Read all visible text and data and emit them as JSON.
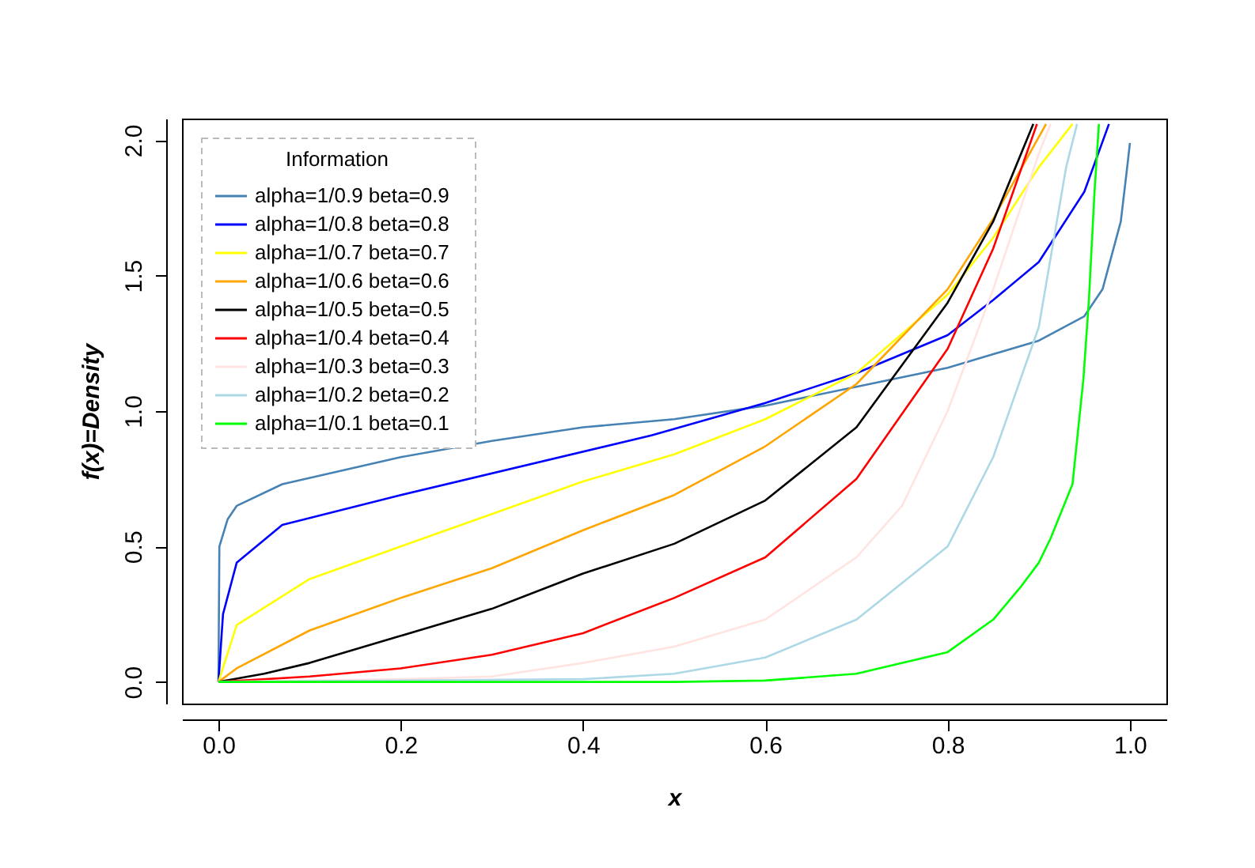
{
  "chart_data": {
    "type": "line",
    "xlabel": "x",
    "ylabel": "f(x)=Density",
    "legend_title": "Information",
    "legend": "top left",
    "grid": false,
    "xlim": [
      -0.04,
      1.04
    ],
    "ylim": [
      -0.08,
      2.08
    ],
    "xticks": [
      {
        "value": 0,
        "label": "0.0"
      },
      {
        "value": 0.2,
        "label": "0.2"
      },
      {
        "value": 0.4,
        "label": "0.4"
      },
      {
        "value": 0.6,
        "label": "0.6"
      },
      {
        "value": 0.8,
        "label": "0.8"
      },
      {
        "value": 1,
        "label": "1.0"
      }
    ],
    "yticks": [
      {
        "value": 0,
        "label": "0.0"
      },
      {
        "value": 0.5,
        "label": "0.5"
      },
      {
        "value": 1,
        "label": "1.0"
      },
      {
        "value": 1.5,
        "label": "1.5"
      },
      {
        "value": 2,
        "label": "2.0"
      }
    ],
    "series": [
      {
        "name": "alpha=1/0.9   beta=0.9",
        "color": "#4682b4",
        "x": [
          0,
          0.001,
          0.01,
          0.02,
          0.07,
          0.2,
          0.3,
          0.4,
          0.5,
          0.6,
          0.7,
          0.8,
          0.85,
          0.9,
          0.95,
          0.97,
          0.99,
          0.997,
          1
        ],
        "values": [
          0,
          0.5,
          0.6,
          0.65,
          0.73,
          0.83,
          0.89,
          0.94,
          0.97,
          1.02,
          1.09,
          1.16,
          1.21,
          1.26,
          1.35,
          1.45,
          1.7,
          1.9,
          1.99
        ]
      },
      {
        "name": "alpha=1/0.8   beta=0.8",
        "color": "#0000ff",
        "x": [
          0,
          0.005,
          0.02,
          0.07,
          0.2,
          0.475,
          0.6,
          0.7,
          0.8,
          0.85,
          0.9,
          0.95,
          0.977
        ],
        "values": [
          0,
          0.25,
          0.44,
          0.58,
          0.69,
          0.91,
          1.03,
          1.14,
          1.28,
          1.41,
          1.55,
          1.81,
          2.06
        ]
      },
      {
        "name": "alpha=1/0.7   beta=0.7",
        "color": "#ffff00",
        "x": [
          0,
          0.02,
          0.1,
          0.2,
          0.3,
          0.4,
          0.5,
          0.6,
          0.7,
          0.8,
          0.85,
          0.9,
          0.937
        ],
        "values": [
          0,
          0.21,
          0.38,
          0.5,
          0.62,
          0.74,
          0.84,
          0.97,
          1.14,
          1.43,
          1.64,
          1.9,
          2.06
        ]
      },
      {
        "name": "alpha=1/0.6   beta=0.6",
        "color": "#ffa500",
        "x": [
          0,
          0.02,
          0.1,
          0.2,
          0.3,
          0.4,
          0.5,
          0.6,
          0.7,
          0.8,
          0.85,
          0.908
        ],
        "values": [
          0,
          0.05,
          0.19,
          0.31,
          0.42,
          0.56,
          0.69,
          0.87,
          1.1,
          1.45,
          1.71,
          2.06
        ]
      },
      {
        "name": "alpha=1/0.5   beta=0.5",
        "color": "#000000",
        "x": [
          0,
          0.05,
          0.1,
          0.2,
          0.3,
          0.4,
          0.5,
          0.6,
          0.7,
          0.8,
          0.85,
          0.894
        ],
        "values": [
          0,
          0.03,
          0.07,
          0.17,
          0.27,
          0.4,
          0.51,
          0.67,
          0.94,
          1.4,
          1.7,
          2.06
        ]
      },
      {
        "name": "alpha=1/0.4   beta=0.4",
        "color": "#ff0000",
        "x": [
          0,
          0.1,
          0.2,
          0.3,
          0.4,
          0.5,
          0.6,
          0.7,
          0.8,
          0.85,
          0.898
        ],
        "values": [
          0,
          0.02,
          0.05,
          0.1,
          0.18,
          0.31,
          0.46,
          0.75,
          1.23,
          1.6,
          2.06
        ]
      },
      {
        "name": "alpha=1/0.3   beta=0.3",
        "color": "#ffe4e1",
        "x": [
          0,
          0.2,
          0.3,
          0.4,
          0.5,
          0.6,
          0.7,
          0.75,
          0.8,
          0.85,
          0.9,
          0.913
        ],
        "values": [
          0,
          0.01,
          0.02,
          0.07,
          0.13,
          0.23,
          0.46,
          0.65,
          1,
          1.45,
          1.95,
          2.06
        ]
      },
      {
        "name": "alpha=1/0.2   beta=0.2",
        "color": "#add8e6",
        "x": [
          0,
          0.4,
          0.5,
          0.6,
          0.7,
          0.8,
          0.85,
          0.9,
          0.93,
          0.942
        ],
        "values": [
          0,
          0.01,
          0.03,
          0.09,
          0.23,
          0.5,
          0.83,
          1.31,
          1.9,
          2.06
        ]
      },
      {
        "name": "alpha=1/0.1   beta=0.1",
        "color": "#00ff00",
        "x": [
          0,
          0.5,
          0.6,
          0.7,
          0.8,
          0.85,
          0.88,
          0.9,
          0.913,
          0.937,
          0.949,
          0.955,
          0.961,
          0.966
        ],
        "values": [
          0,
          0,
          0.005,
          0.03,
          0.11,
          0.23,
          0.35,
          0.44,
          0.53,
          0.73,
          1.12,
          1.41,
          1.8,
          2.06
        ]
      }
    ]
  }
}
